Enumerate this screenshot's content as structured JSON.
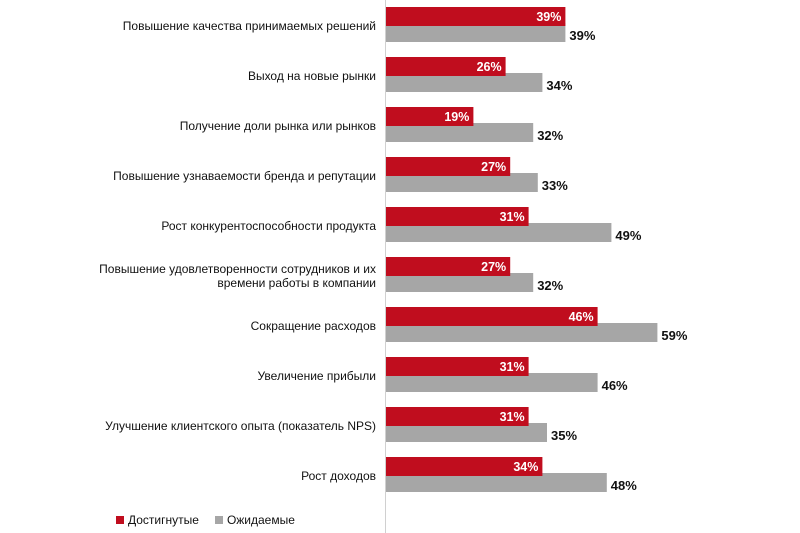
{
  "chart_data": {
    "type": "bar",
    "orientation": "horizontal",
    "categories": [
      [
        "Повышение качества принимаемых решений"
      ],
      [
        "Выход на новые рынки"
      ],
      [
        "Получение доли рынка или рынков"
      ],
      [
        "Повышение узнаваемости бренда и репутации"
      ],
      [
        "Рост конкурентоспособности продукта"
      ],
      [
        "Повышение удовлетворенности сотрудников и их",
        "времени работы в компании"
      ],
      [
        "Сокращение расходов"
      ],
      [
        "Увеличение прибыли"
      ],
      [
        "Улучшение клиентского опыта (показатель NPS)"
      ],
      [
        "Рост доходов"
      ]
    ],
    "series": [
      {
        "name": "Достигнутые",
        "color": "#c00d1e",
        "values": [
          39,
          26,
          19,
          27,
          31,
          27,
          46,
          31,
          31,
          34
        ]
      },
      {
        "name": "Ожидаемые",
        "color": "#a6a6a6",
        "values": [
          39,
          34,
          32,
          33,
          49,
          32,
          59,
          46,
          35,
          48
        ]
      }
    ],
    "value_suffix": "%",
    "xlim": [
      0,
      59
    ],
    "legend": "bottom-left",
    "grid": false
  }
}
